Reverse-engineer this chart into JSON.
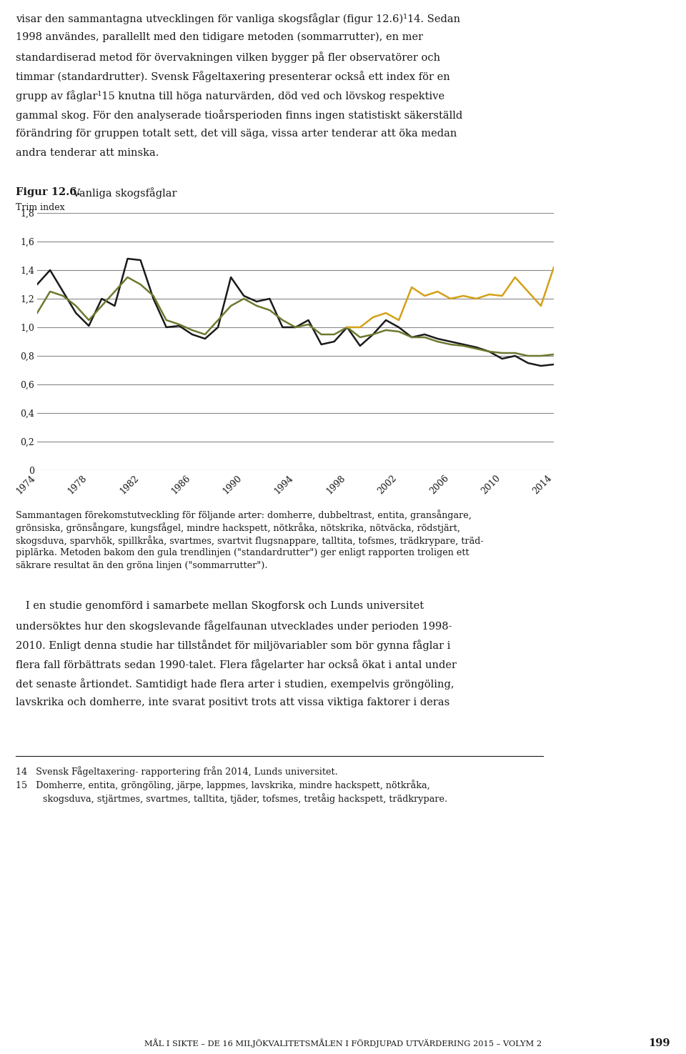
{
  "title_bold": "Figur 12.6.",
  "title_normal": " Vanliga skogsfåglar",
  "ylabel": "Trim index",
  "background_color": "#ffffff",
  "text_color": "#000000",
  "ylim": [
    0,
    1.8
  ],
  "yticks": [
    0,
    0.2,
    0.4,
    0.6,
    0.8,
    1.0,
    1.2,
    1.4,
    1.6,
    1.8
  ],
  "ytick_labels": [
    "0",
    "0,2",
    "0,4",
    "0,6",
    "0,8",
    "1,0",
    "1,2",
    "1,4",
    "1,6",
    "1,8"
  ],
  "years": [
    1974,
    1975,
    1976,
    1977,
    1978,
    1979,
    1980,
    1981,
    1982,
    1983,
    1984,
    1985,
    1986,
    1987,
    1988,
    1989,
    1990,
    1991,
    1992,
    1993,
    1994,
    1995,
    1996,
    1997,
    1998,
    1999,
    2000,
    2001,
    2002,
    2003,
    2004,
    2005,
    2006,
    2007,
    2008,
    2009,
    2010,
    2011,
    2012,
    2013,
    2014
  ],
  "black_line": [
    1.3,
    1.4,
    1.25,
    1.1,
    1.01,
    1.2,
    1.15,
    1.48,
    1.47,
    1.2,
    1.0,
    1.01,
    0.95,
    0.92,
    1.0,
    1.35,
    1.22,
    1.18,
    1.2,
    1.0,
    1.0,
    1.05,
    0.88,
    0.9,
    1.0,
    0.87,
    0.95,
    1.05,
    1.0,
    0.93,
    0.95,
    0.92,
    0.9,
    0.88,
    0.86,
    0.83,
    0.78,
    0.8,
    0.75,
    0.73,
    0.74
  ],
  "green_line": [
    1.1,
    1.25,
    1.22,
    1.15,
    1.05,
    1.15,
    1.25,
    1.35,
    1.3,
    1.22,
    1.05,
    1.02,
    0.98,
    0.95,
    1.05,
    1.15,
    1.2,
    1.15,
    1.12,
    1.05,
    1.0,
    1.02,
    0.95,
    0.95,
    1.0,
    0.93,
    0.95,
    0.98,
    0.97,
    0.93,
    0.93,
    0.9,
    0.88,
    0.87,
    0.85,
    0.83,
    0.82,
    0.82,
    0.8,
    0.8,
    0.81
  ],
  "yellow_years": [
    1998,
    1999,
    2000,
    2001,
    2002,
    2003,
    2004,
    2005,
    2006,
    2007,
    2008,
    2009,
    2010,
    2011,
    2012,
    2013,
    2014
  ],
  "yellow_line": [
    1.0,
    1.0,
    1.07,
    1.1,
    1.05,
    1.28,
    1.22,
    1.25,
    1.2,
    1.22,
    1.2,
    1.23,
    1.22,
    1.35,
    1.25,
    1.15,
    1.42
  ],
  "line_colors": {
    "black": "#1a1a1a",
    "green": "#6b7a2e",
    "yellow": "#d4a017"
  },
  "line_width": 1.8,
  "footer_text": "MÅL I SIKTE – DE 16 MILJÖKVALITETSMÅLEN I FÖRDJUPAD UTVÄRDERING 2015 – VOLYM 2",
  "footer_page": "199",
  "xtick_years": [
    1974,
    1978,
    1982,
    1986,
    1990,
    1994,
    1998,
    2002,
    2006,
    2010,
    2014
  ]
}
